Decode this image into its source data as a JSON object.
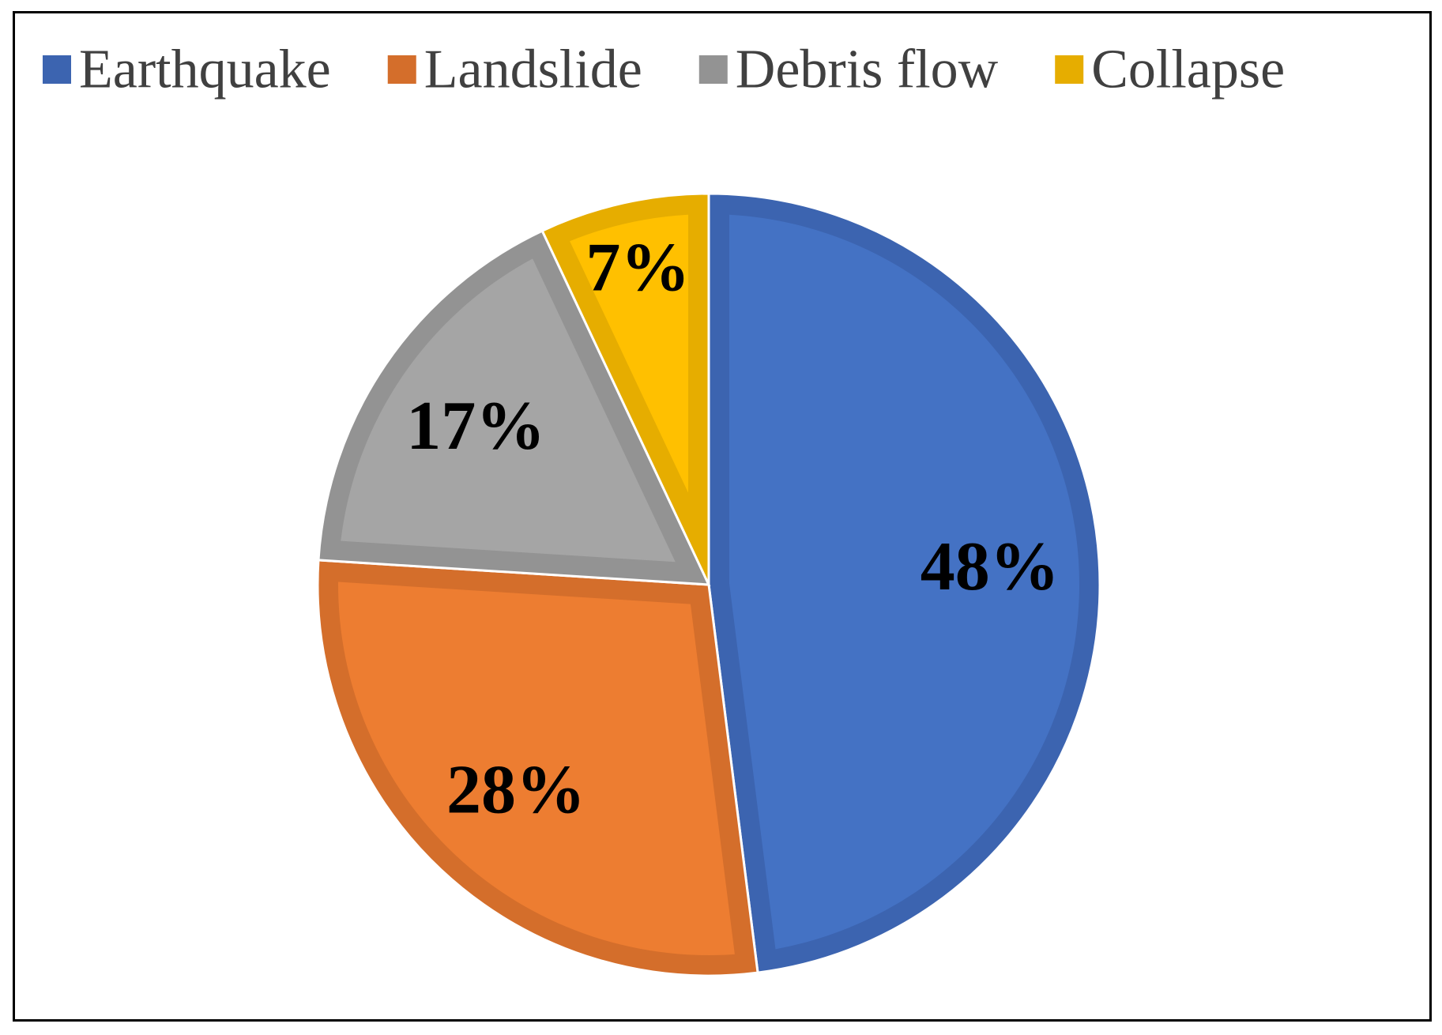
{
  "chart_data": {
    "type": "pie",
    "legend_position": "top",
    "categories": [
      "Earthquake",
      "Landslide",
      "Debris flow",
      "Collapse"
    ],
    "values": [
      48,
      28,
      17,
      7
    ],
    "value_labels": [
      "48%",
      "28%",
      "17%",
      "7%"
    ],
    "colors": [
      "#4472C4",
      "#ED7D31",
      "#A5A5A5",
      "#FFC000"
    ],
    "border_colors": [
      "#3C64B0",
      "#D46E2B",
      "#939393",
      "#E6AD00"
    ],
    "start_angle_deg": 0,
    "direction": "clockwise"
  }
}
